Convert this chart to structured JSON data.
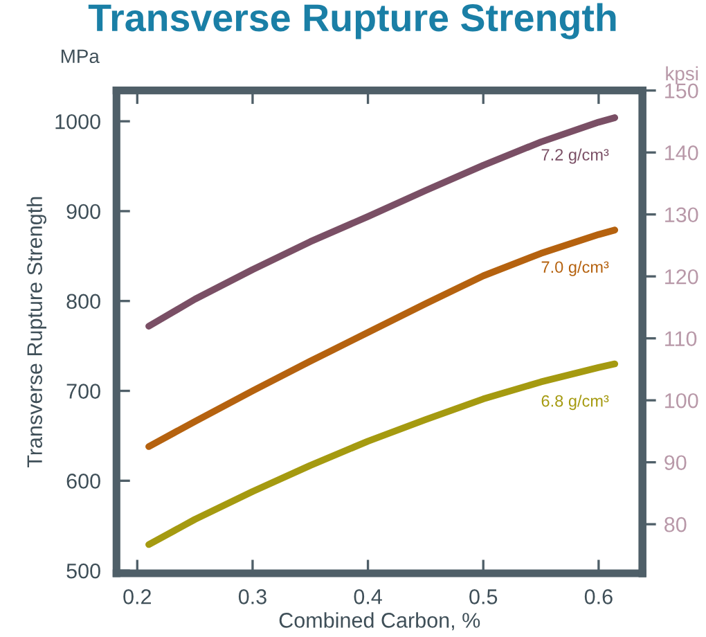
{
  "chart_data": {
    "type": "line",
    "title": "Transverse Rupture Strength",
    "xlabel": "Combined Carbon, %",
    "ylabel": "Transverse Rupture Strength",
    "y2label": "kpsi",
    "annotations": [
      "MPa"
    ],
    "xlim": [
      0.182,
      0.638
    ],
    "xticks": [
      0.2,
      0.3,
      0.4,
      0.5,
      0.6
    ],
    "ylim": [
      497,
      1034.3
    ],
    "yticks": [
      500,
      600,
      700,
      800,
      900,
      1000
    ],
    "y2lim": [
      72.08,
      150.01
    ],
    "y2ticks": [
      80,
      90,
      100,
      110,
      120,
      130,
      140,
      150
    ],
    "grid": false,
    "legend": false,
    "marker": "none",
    "line_style": "solid",
    "series": [
      {
        "name": "7.2 g/cm³",
        "color": "#7a4f65",
        "x": [
          0.21,
          0.25,
          0.3,
          0.35,
          0.4,
          0.45,
          0.5,
          0.55,
          0.6,
          0.614
        ],
        "values": [
          772,
          802,
          835,
          866,
          894,
          923,
          951,
          977,
          999,
          1004
        ]
      },
      {
        "name": "7.0 g/cm³",
        "color": "#b5620f",
        "x": [
          0.21,
          0.25,
          0.3,
          0.35,
          0.4,
          0.45,
          0.5,
          0.55,
          0.6,
          0.614
        ],
        "values": [
          638,
          666,
          700,
          733,
          765,
          797,
          828,
          853,
          874,
          879
        ]
      },
      {
        "name": "6.8 g/cm³",
        "color": "#a59a10",
        "x": [
          0.21,
          0.25,
          0.3,
          0.35,
          0.4,
          0.45,
          0.5,
          0.55,
          0.6,
          0.614
        ],
        "values": [
          529,
          557,
          588,
          617,
          644,
          668,
          691,
          710,
          726,
          730
        ]
      }
    ]
  }
}
